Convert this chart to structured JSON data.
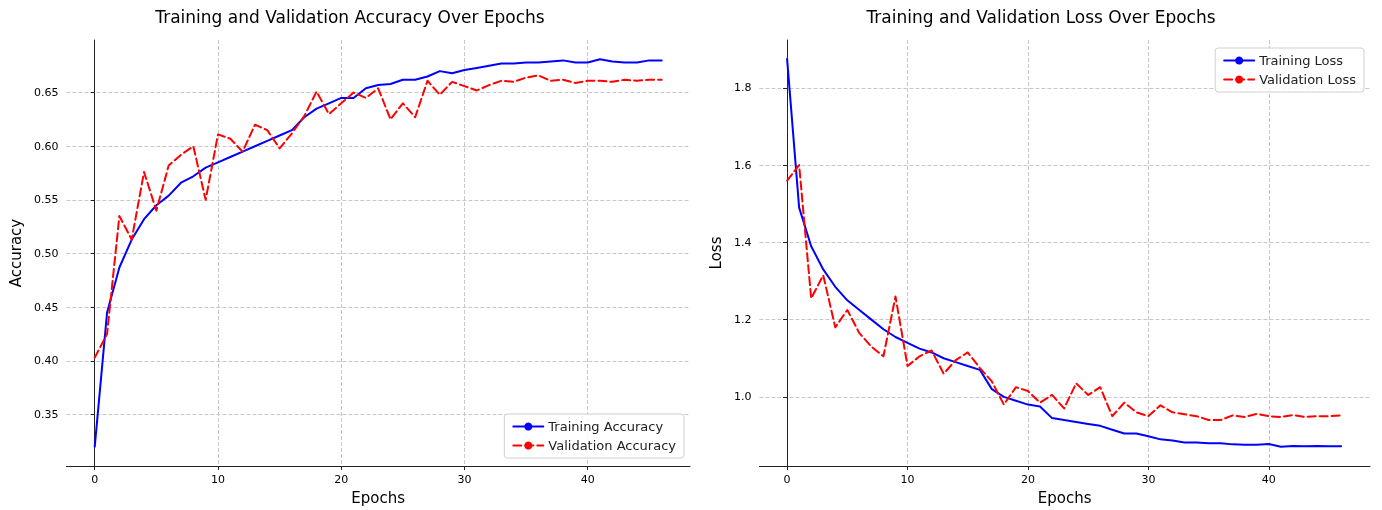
{
  "chart_data": [
    {
      "type": "line",
      "title": "Training and Validation Accuracy Over Epochs",
      "xlabel": "Epochs",
      "ylabel": "Accuracy",
      "x": [
        0,
        1,
        2,
        3,
        4,
        5,
        6,
        7,
        8,
        9,
        10,
        11,
        12,
        13,
        14,
        15,
        16,
        17,
        18,
        19,
        20,
        21,
        22,
        23,
        24,
        25,
        26,
        27,
        28,
        29,
        30,
        31,
        32,
        33,
        34,
        35,
        36,
        37,
        38,
        39,
        40,
        41,
        42,
        43,
        44,
        45,
        46
      ],
      "series": [
        {
          "name": "Training Accuracy",
          "color": "#0000ff",
          "line_style": "solid",
          "values": [
            0.32,
            0.445,
            0.487,
            0.513,
            0.532,
            0.545,
            0.554,
            0.566,
            0.572,
            0.58,
            0.585,
            0.59,
            0.595,
            0.6,
            0.605,
            0.61,
            0.615,
            0.627,
            0.635,
            0.64,
            0.645,
            0.645,
            0.654,
            0.657,
            0.658,
            0.662,
            0.662,
            0.665,
            0.67,
            0.668,
            0.671,
            0.673,
            0.675,
            0.677,
            0.677,
            0.678,
            0.678,
            0.679,
            0.68,
            0.678,
            0.678,
            0.681,
            0.679,
            0.678,
            0.678,
            0.68,
            0.68
          ]
        },
        {
          "name": "Validation Accuracy",
          "color": "#ff0000",
          "line_style": "dashed",
          "values": [
            0.403,
            0.425,
            0.535,
            0.513,
            0.576,
            0.54,
            0.582,
            0.592,
            0.6,
            0.55,
            0.611,
            0.607,
            0.595,
            0.62,
            0.615,
            0.598,
            0.612,
            0.628,
            0.651,
            0.63,
            0.64,
            0.65,
            0.645,
            0.654,
            0.625,
            0.64,
            0.627,
            0.661,
            0.648,
            0.66,
            0.656,
            0.652,
            0.657,
            0.661,
            0.66,
            0.664,
            0.666,
            0.661,
            0.662,
            0.659,
            0.661,
            0.661,
            0.66,
            0.662,
            0.661,
            0.662,
            0.662
          ]
        }
      ],
      "xlim": [
        -2.3,
        48.3
      ],
      "xticks": [
        0,
        10,
        20,
        30,
        40
      ],
      "ylim": [
        0.302,
        0.699
      ],
      "yticks": [
        0.35,
        {
          "value": 0.4,
          "label": "0.40"
        },
        0.45,
        {
          "value": 0.5,
          "label": "0.50"
        },
        0.55,
        {
          "value": 0.6,
          "label": "0.60"
        },
        0.65
      ],
      "grid": true,
      "legend": "bottom right",
      "marker": "none"
    },
    {
      "type": "line",
      "title": "Training and Validation Loss Over Epochs",
      "xlabel": "Epochs",
      "ylabel": "Loss",
      "x": [
        0,
        1,
        2,
        3,
        4,
        5,
        6,
        7,
        8,
        9,
        10,
        11,
        12,
        13,
        14,
        15,
        16,
        17,
        18,
        19,
        20,
        21,
        22,
        23,
        24,
        25,
        26,
        27,
        28,
        29,
        30,
        31,
        32,
        33,
        34,
        35,
        36,
        37,
        38,
        39,
        40,
        41,
        42,
        43,
        44,
        45,
        46
      ],
      "series": [
        {
          "name": "Training Loss",
          "color": "#0000ff",
          "line_style": "solid",
          "values": [
            1.875,
            1.49,
            1.39,
            1.33,
            1.285,
            1.25,
            1.225,
            1.2,
            1.175,
            1.155,
            1.14,
            1.125,
            1.115,
            1.1,
            1.09,
            1.08,
            1.07,
            1.02,
            1.0,
            0.99,
            0.98,
            0.975,
            0.945,
            0.94,
            0.935,
            0.93,
            0.925,
            0.915,
            0.905,
            0.905,
            0.898,
            0.89,
            0.887,
            0.882,
            0.882,
            0.88,
            0.88,
            0.877,
            0.876,
            0.876,
            0.878,
            0.871,
            0.873,
            0.872,
            0.873,
            0.872,
            0.872
          ]
        },
        {
          "name": "Validation Loss",
          "color": "#ff0000",
          "line_style": "dashed",
          "values": [
            1.56,
            1.6,
            1.255,
            1.315,
            1.18,
            1.225,
            1.165,
            1.13,
            1.105,
            1.26,
            1.08,
            1.105,
            1.12,
            1.06,
            1.095,
            1.115,
            1.075,
            1.04,
            0.98,
            1.025,
            1.015,
            0.985,
            1.005,
            0.97,
            1.035,
            1.005,
            1.025,
            0.95,
            0.985,
            0.96,
            0.95,
            0.978,
            0.96,
            0.955,
            0.95,
            0.94,
            0.94,
            0.952,
            0.948,
            0.956,
            0.95,
            0.948,
            0.953,
            0.948,
            0.95,
            0.95,
            0.952
          ]
        }
      ],
      "xlim": [
        -2.3,
        48.4
      ],
      "xticks": [
        0,
        10,
        20,
        30,
        40
      ],
      "ylim": [
        0.821,
        1.924
      ],
      "yticks": [
        {
          "value": 1,
          "label": "1.0"
        },
        {
          "value": 1.2,
          "label": "1.2"
        },
        {
          "value": 1.4,
          "label": "1.4"
        },
        {
          "value": 1.6,
          "label": "1.6"
        },
        {
          "value": 1.8,
          "label": "1.8"
        }
      ],
      "grid": true,
      "legend": "top right",
      "marker": "none"
    }
  ]
}
